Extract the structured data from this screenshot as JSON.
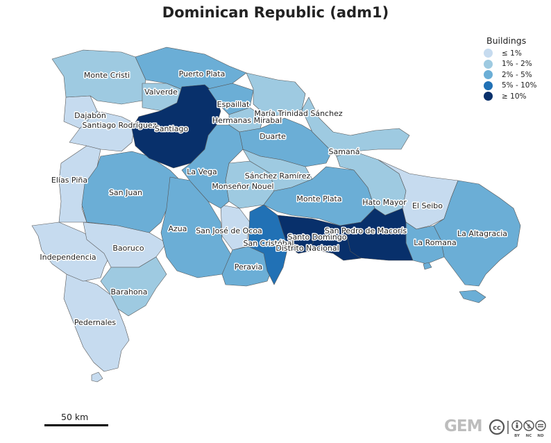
{
  "title": "Dominican Republic (adm1)",
  "legend": {
    "title": "Buildings",
    "items": [
      {
        "label": "≤ 1%",
        "color": "#c6dbef"
      },
      {
        "label": "1% - 2%",
        "color": "#9ecae1"
      },
      {
        "label": "2% - 5%",
        "color": "#6baed6"
      },
      {
        "label": "5% - 10%",
        "color": "#2171b5"
      },
      {
        "label": "≥ 10%",
        "color": "#08306b"
      }
    ]
  },
  "scale_bar": {
    "label": "50 km"
  },
  "logo": {
    "text": "GEM"
  },
  "license": {
    "labels": [
      "BY",
      "NC",
      "ND"
    ],
    "icon": "cc-license-icon"
  },
  "provinces": [
    {
      "name": "Monte Cristi",
      "class": "1% - 2%"
    },
    {
      "name": "Puerto Plata",
      "class": "2% - 5%"
    },
    {
      "name": "Valverde",
      "class": "1% - 2%"
    },
    {
      "name": "Espaillat",
      "class": "2% - 5%"
    },
    {
      "name": "Dajabón",
      "class": "≤ 1%"
    },
    {
      "name": "Santiago Rodríguez",
      "class": "≤ 1%"
    },
    {
      "name": "Santiago",
      "class": "≥ 10%"
    },
    {
      "name": "María Trinidad Sánchez",
      "class": "1% - 2%"
    },
    {
      "name": "Hermanas Mirabal",
      "class": "1% - 2%"
    },
    {
      "name": "Duarte",
      "class": "2% - 5%"
    },
    {
      "name": "Samaná",
      "class": "1% - 2%"
    },
    {
      "name": "La Vega",
      "class": "2% - 5%"
    },
    {
      "name": "Sánchez Ramírez",
      "class": "1% - 2%"
    },
    {
      "name": "Monseñor Nouel",
      "class": "1% - 2%"
    },
    {
      "name": "Elías Piña",
      "class": "≤ 1%"
    },
    {
      "name": "San Juan",
      "class": "2% - 5%"
    },
    {
      "name": "Monte Plata",
      "class": "2% - 5%"
    },
    {
      "name": "Hato Mayor",
      "class": "1% - 2%"
    },
    {
      "name": "El Seibo",
      "class": "≤ 1%"
    },
    {
      "name": "Azua",
      "class": "2% - 5%"
    },
    {
      "name": "San José de Ocoa",
      "class": "≤ 1%"
    },
    {
      "name": "Santo Domingo",
      "class": "≥ 10%"
    },
    {
      "name": "San Pedro de Macorís",
      "class": "≥ 10%"
    },
    {
      "name": "San Cristóbal",
      "class": "5% - 10%"
    },
    {
      "name": "Distrito Nacional",
      "class": "≥ 10%"
    },
    {
      "name": "La Altagracia",
      "class": "2% - 5%"
    },
    {
      "name": "La Romana",
      "class": "2% - 5%"
    },
    {
      "name": "Baoruco",
      "class": "≤ 1%"
    },
    {
      "name": "Independencia",
      "class": "≤ 1%"
    },
    {
      "name": "Peravia",
      "class": "2% - 5%"
    },
    {
      "name": "Barahona",
      "class": "1% - 2%"
    },
    {
      "name": "Pedernales",
      "class": "≤ 1%"
    }
  ]
}
